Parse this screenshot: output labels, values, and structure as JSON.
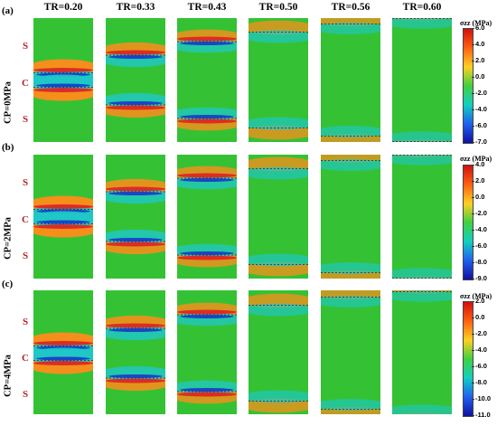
{
  "columns": [
    "TR=0.20",
    "TR=0.33",
    "TR=0.43",
    "TR=0.50",
    "TR=0.56",
    "TR=0.60"
  ],
  "tr_values": [
    0.2,
    0.33,
    0.43,
    0.5,
    0.56,
    0.6
  ],
  "panels": [
    {
      "letter": "(a)",
      "label": "CP=0MPa",
      "materials": [
        "S",
        "C",
        "S"
      ],
      "colorbar": {
        "title": "σzz (MPa)",
        "ticks": [
          "6.0",
          "4.0",
          "2.0",
          "0.0",
          "-2.0",
          "-4.0",
          "-6.0",
          "-7.0"
        ]
      }
    },
    {
      "letter": "(b)",
      "label": "CP=2MPa",
      "materials": [
        "S",
        "C",
        "S"
      ],
      "colorbar": {
        "title": "σzz (MPa)",
        "ticks": [
          "4.0",
          "2.0",
          "0.0",
          "-2.0",
          "-4.0",
          "-6.0",
          "-8.0",
          "-9.0"
        ]
      }
    },
    {
      "letter": "(c)",
      "label": "CP=4MPa",
      "materials": [
        "S",
        "C",
        "S"
      ],
      "colorbar": {
        "title": "σzz (MPa)",
        "ticks": [
          "2.0",
          "0.0",
          "-2.0",
          "-4.0",
          "-6.0",
          "-8.0",
          "-10.0",
          "-11.0"
        ]
      }
    }
  ],
  "colors": {
    "background_field": "#34c234",
    "compression_band": "#1ec8c8",
    "tension_band": "#ff8c1a",
    "peak_tension": "#e02020",
    "peak_compression": "#1030d0",
    "colorbar_gradient": [
      "#d01010",
      "#ff6010",
      "#ffd020",
      "#40d040",
      "#10d0c0",
      "#2060f0",
      "#1010a0"
    ]
  }
}
